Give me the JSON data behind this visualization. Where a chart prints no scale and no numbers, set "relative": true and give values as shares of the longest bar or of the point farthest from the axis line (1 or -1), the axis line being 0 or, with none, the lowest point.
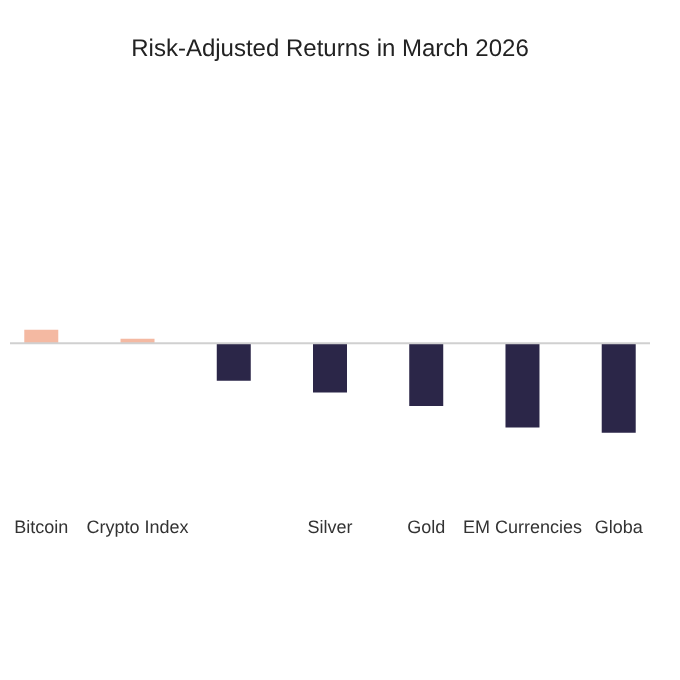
{
  "chart_data": {
    "type": "bar",
    "title": "Risk-Adjusted Returns in March 2026",
    "categories": [
      "Bitcoin",
      "Crypto Index",
      null,
      "Silver",
      "Gold",
      "EM Currencies",
      "Globa"
    ],
    "values": [
      0.15,
      0.05,
      -0.42,
      -0.55,
      -0.7,
      -0.94,
      -1
    ],
    "colors": [
      "#f4b9a2",
      "#f4b9a2",
      "#2b2648",
      "#2b2648",
      "#2b2648",
      "#2b2648",
      "#2b2648"
    ],
    "relative": true,
    "grid": false
  }
}
